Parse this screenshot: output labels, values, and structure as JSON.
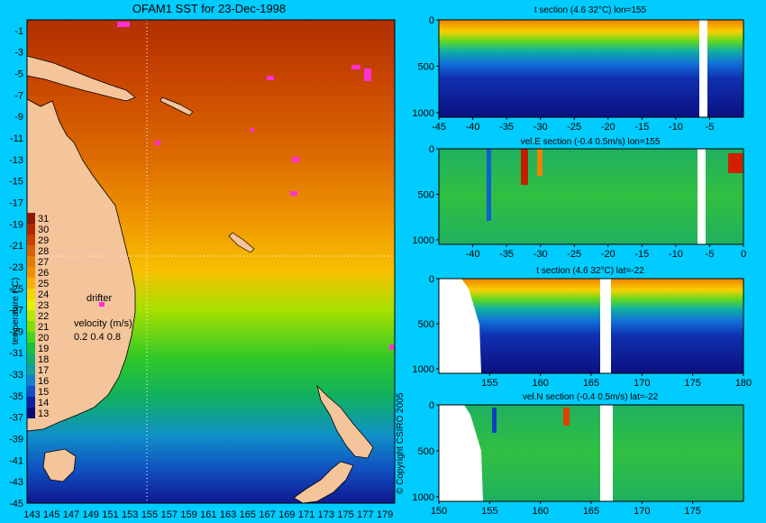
{
  "chart_data": [
    {
      "type": "heatmap",
      "title": "OFAM1 SST for 23-Dec-1998",
      "x_ticks": [
        143,
        145,
        147,
        149,
        151,
        153,
        155,
        157,
        159,
        161,
        163,
        165,
        167,
        169,
        171,
        173,
        175,
        177,
        179
      ],
      "y_ticks": [
        -1,
        -3,
        -5,
        -7,
        -9,
        -11,
        -13,
        -15,
        -17,
        -19,
        -21,
        -23,
        -25,
        -27,
        -29,
        -31,
        -33,
        -35,
        -37,
        -39,
        -41,
        -43,
        -45
      ],
      "xlim": [
        142.5,
        180
      ],
      "ylim": [
        -45,
        0
      ],
      "colorbar": {
        "label": "temperature (°C)",
        "ticks": [
          31,
          30,
          29,
          28,
          27,
          26,
          25,
          24,
          23,
          22,
          21,
          20,
          19,
          18,
          17,
          16,
          15,
          14,
          13
        ],
        "colors": [
          "#8b1a00",
          "#b02800",
          "#c84000",
          "#d86000",
          "#e47a00",
          "#f09000",
          "#f8b000",
          "#f8d400",
          "#e8f000",
          "#b8e800",
          "#80e000",
          "#40d820",
          "#18c040",
          "#10b070",
          "#10a0a0",
          "#1080d0",
          "#1050c8",
          "#1020a0",
          "#0c0878"
        ]
      },
      "annotations": {
        "drifter": "drifter",
        "velocity_label": "velocity (m/s)",
        "velocity_scale": "0.2 0.4 0.8",
        "copyright": "© Copyright CSIRO 2005"
      },
      "section_lines": {
        "lon": 155,
        "lat": -22
      }
    },
    {
      "type": "heatmap",
      "title": "t section (4.6     32°C) lon=155",
      "x_ticks": [
        -45,
        -40,
        -35,
        -30,
        -25,
        -20,
        -15,
        -10,
        -5
      ],
      "y_ticks": [
        0,
        500,
        1000
      ],
      "xlim": [
        -45,
        0
      ],
      "ylim": [
        1050,
        0
      ]
    },
    {
      "type": "heatmap",
      "title": "vel.E section (-0.4     0.5m/s) lon=155",
      "x_ticks": [
        -40,
        -35,
        -30,
        -25,
        -20,
        -15,
        -10,
        -5,
        0
      ],
      "y_ticks": [
        0,
        500,
        1000
      ],
      "xlim": [
        -45,
        0
      ],
      "ylim": [
        1050,
        0
      ]
    },
    {
      "type": "heatmap",
      "title": "t section (4.6     32°C) lat=-22",
      "x_ticks": [
        155,
        160,
        165,
        170,
        175,
        180
      ],
      "y_ticks": [
        0,
        500,
        1000
      ],
      "xlim": [
        150,
        180
      ],
      "ylim": [
        1050,
        0
      ]
    },
    {
      "type": "heatmap",
      "title": "vel.N section (-0.4     0.5m/s) lat=-22",
      "x_ticks": [
        150,
        155,
        160,
        165,
        170,
        175
      ],
      "y_ticks": [
        0,
        500,
        1000
      ],
      "xlim": [
        150,
        180
      ],
      "ylim": [
        1050,
        0
      ]
    }
  ]
}
